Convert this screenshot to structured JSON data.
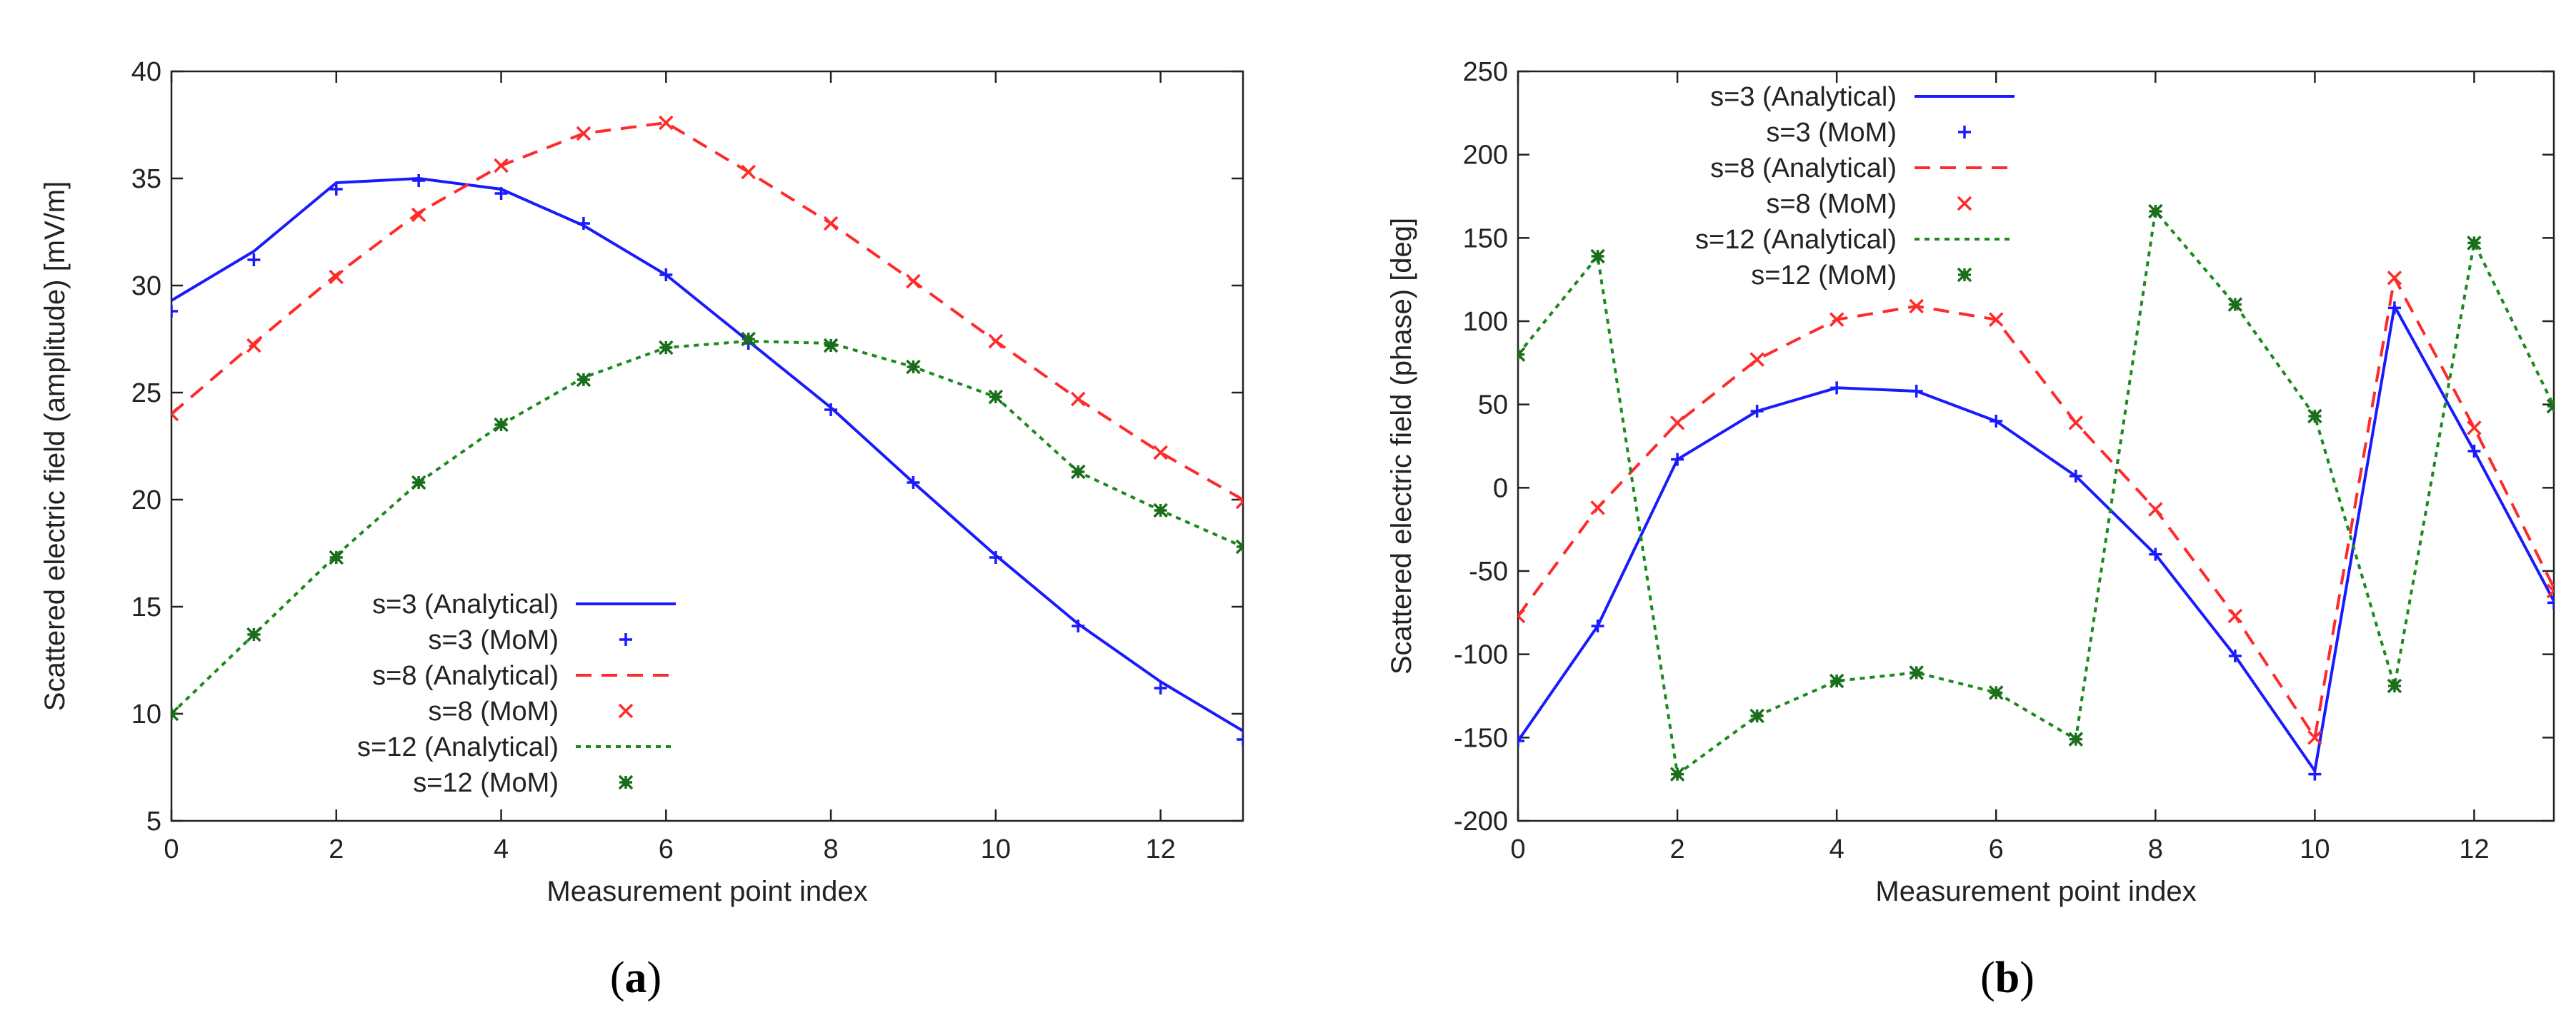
{
  "figure": {
    "panels": [
      {
        "label_open": "(",
        "label_letter": "a",
        "label_close": ")"
      },
      {
        "label_open": "(",
        "label_letter": "b",
        "label_close": ")"
      }
    ]
  },
  "chart_data": [
    {
      "type": "line",
      "xlabel": "Measurement point index",
      "ylabel": "Scattered electric field (amplitude) [mV/m]",
      "xlim": [
        0,
        13
      ],
      "ylim": [
        5,
        40
      ],
      "xticks": [
        0,
        2,
        4,
        6,
        8,
        10,
        12
      ],
      "yticks": [
        5,
        10,
        15,
        20,
        25,
        30,
        35,
        40
      ],
      "legend_position": "bottom-left",
      "x": [
        0,
        1,
        2,
        3,
        4,
        5,
        6,
        7,
        8,
        9,
        10,
        11,
        12,
        13
      ],
      "series": [
        {
          "name": "s=3 (Analytical)",
          "kind": "line",
          "dash": "solid",
          "color": "#1a1aff",
          "values": [
            29.3,
            31.6,
            34.8,
            35.0,
            34.5,
            32.8,
            30.5,
            27.4,
            24.3,
            20.8,
            17.4,
            14.2,
            11.5,
            9.2
          ]
        },
        {
          "name": "s=3 (MoM)",
          "kind": "marker",
          "marker": "plus",
          "color": "#1a1aff",
          "values": [
            28.8,
            31.2,
            34.5,
            34.9,
            34.3,
            32.9,
            30.5,
            27.3,
            24.2,
            20.8,
            17.3,
            14.1,
            11.2,
            8.8
          ]
        },
        {
          "name": "s=8 (Analytical)",
          "kind": "line",
          "dash": "dashed",
          "color": "#ff2a2a",
          "values": [
            24.0,
            27.3,
            30.5,
            33.4,
            35.6,
            37.1,
            37.6,
            35.3,
            32.9,
            30.2,
            27.4,
            24.7,
            22.2,
            20.0
          ]
        },
        {
          "name": "s=8 (MoM)",
          "kind": "marker",
          "marker": "cross",
          "color": "#ff2a2a",
          "values": [
            24.0,
            27.2,
            30.4,
            33.3,
            35.6,
            37.1,
            37.6,
            35.3,
            32.9,
            30.2,
            27.4,
            24.7,
            22.2,
            19.9
          ]
        },
        {
          "name": "s=12 (Analytical)",
          "kind": "line",
          "dash": "dotted",
          "color": "#1b8a1b",
          "values": [
            10.0,
            13.7,
            17.4,
            20.8,
            23.5,
            25.7,
            27.1,
            27.4,
            27.3,
            26.2,
            24.8,
            21.3,
            19.5,
            17.8
          ]
        },
        {
          "name": "s=12 (MoM)",
          "kind": "marker",
          "marker": "star",
          "color": "#1b6e1b",
          "values": [
            10.0,
            13.7,
            17.3,
            20.8,
            23.5,
            25.6,
            27.1,
            27.5,
            27.2,
            26.2,
            24.8,
            21.3,
            19.5,
            17.8
          ]
        }
      ]
    },
    {
      "type": "line",
      "xlabel": "Measurement point index",
      "ylabel": "Scattered electric field (phase) [deg]",
      "xlim": [
        0,
        13
      ],
      "ylim": [
        -200,
        250
      ],
      "xticks": [
        0,
        2,
        4,
        6,
        8,
        10,
        12
      ],
      "yticks": [
        -200,
        -150,
        -100,
        -50,
        0,
        50,
        100,
        150,
        200,
        250
      ],
      "legend_position": "top-left",
      "x": [
        0,
        1,
        2,
        3,
        4,
        5,
        6,
        7,
        8,
        9,
        10,
        11,
        12,
        13
      ],
      "series": [
        {
          "name": "s=3 (Analytical)",
          "kind": "line",
          "dash": "solid",
          "color": "#1a1aff",
          "values": [
            -152,
            -83,
            17,
            46,
            60,
            58,
            40,
            7,
            -40,
            -101,
            -170,
            109,
            22,
            -68
          ]
        },
        {
          "name": "s=3 (MoM)",
          "kind": "marker",
          "marker": "plus",
          "color": "#1a1aff",
          "values": [
            -152,
            -83,
            17,
            46,
            60,
            58,
            40,
            7,
            -40,
            -101,
            -172,
            108,
            22,
            -69
          ]
        },
        {
          "name": "s=8 (Analytical)",
          "kind": "line",
          "dash": "dashed",
          "color": "#ff2a2a",
          "values": [
            -77,
            -12,
            39,
            77,
            101,
            109,
            101,
            39,
            -13,
            -77,
            -150,
            126,
            36,
            -60
          ]
        },
        {
          "name": "s=8 (MoM)",
          "kind": "marker",
          "marker": "cross",
          "color": "#ff2a2a",
          "values": [
            -77,
            -12,
            39,
            77,
            101,
            109,
            101,
            39,
            -13,
            -77,
            -150,
            126,
            36,
            -62
          ]
        },
        {
          "name": "s=12 (Analytical)",
          "kind": "line",
          "dash": "dotted",
          "color": "#1b8a1b",
          "values": [
            80,
            139,
            -172,
            -137,
            -116,
            -111,
            -123,
            -151,
            166,
            110,
            43,
            -119,
            147,
            49
          ]
        },
        {
          "name": "s=12 (MoM)",
          "kind": "marker",
          "marker": "star",
          "color": "#1b6e1b",
          "values": [
            80,
            139,
            -172,
            -137,
            -116,
            -111,
            -123,
            -151,
            166,
            110,
            43,
            -119,
            147,
            49
          ]
        }
      ]
    }
  ]
}
